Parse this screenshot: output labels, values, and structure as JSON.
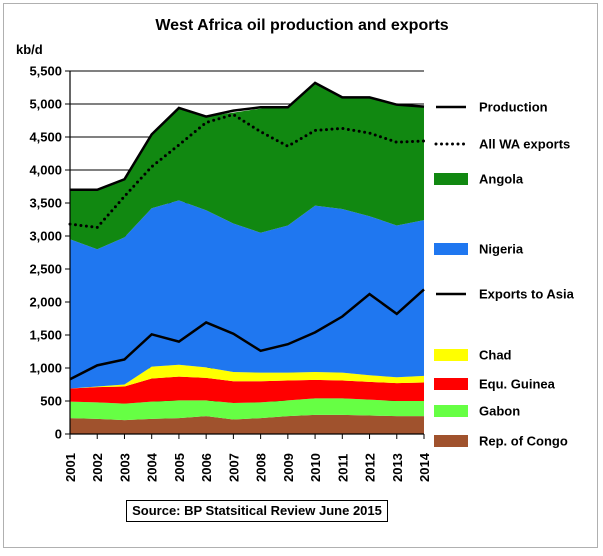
{
  "chart_data": {
    "type": "area",
    "title": "West Africa oil production and exports",
    "ylabel": "kb/d",
    "ylim": [
      0,
      5500
    ],
    "yticks": [
      0,
      500,
      1000,
      1500,
      2000,
      2500,
      3000,
      3500,
      4000,
      4500,
      5000,
      5500
    ],
    "ytick_labels": [
      "0",
      "500",
      "1,000",
      "1,500",
      "2,000",
      "2,500",
      "3,000",
      "3,500",
      "4,000",
      "4,500",
      "5,000",
      "5,500"
    ],
    "categories": [
      "2001",
      "2002",
      "2003",
      "2004",
      "2005",
      "2006",
      "2007",
      "2008",
      "2009",
      "2010",
      "2011",
      "2012",
      "2013",
      "2014"
    ],
    "grid": true,
    "legend_position": "right",
    "stacked_series": [
      {
        "name": "Rep. of Congo",
        "color": "#a0522d",
        "values": [
          240,
          230,
          210,
          230,
          240,
          270,
          220,
          240,
          270,
          290,
          290,
          280,
          270,
          270
        ]
      },
      {
        "name": "Gabon",
        "color": "#66ff44",
        "values": [
          250,
          250,
          250,
          260,
          270,
          240,
          250,
          240,
          240,
          250,
          250,
          240,
          230,
          230
        ]
      },
      {
        "name": "Equ. Guinea",
        "color": "#ff0000",
        "values": [
          200,
          230,
          260,
          350,
          360,
          340,
          330,
          320,
          300,
          280,
          270,
          270,
          270,
          280
        ]
      },
      {
        "name": "Chad",
        "color": "#ffff00",
        "values": [
          0,
          10,
          30,
          180,
          180,
          160,
          140,
          130,
          120,
          120,
          120,
          100,
          90,
          100
        ]
      },
      {
        "name": "Nigeria",
        "color": "#1f77f0",
        "values": [
          2260,
          2080,
          2230,
          2400,
          2490,
          2380,
          2250,
          2120,
          2230,
          2520,
          2480,
          2410,
          2300,
          2360
        ]
      },
      {
        "name": "Angola",
        "color": "#118811",
        "values": [
          750,
          900,
          880,
          1120,
          1400,
          1420,
          1680,
          1880,
          1800,
          1860,
          1700,
          1790,
          1820,
          1720
        ]
      }
    ],
    "line_series": [
      {
        "name": "Production",
        "style": "solid",
        "values": [
          3700,
          3700,
          3860,
          4540,
          4940,
          4810,
          4900,
          4950,
          4950,
          5320,
          5100,
          5100,
          4990,
          4960
        ]
      },
      {
        "name": "All WA exports",
        "style": "dotted",
        "values": [
          3180,
          3130,
          3600,
          4050,
          4380,
          4720,
          4840,
          4580,
          4360,
          4600,
          4630,
          4560,
          4420,
          4440
        ]
      },
      {
        "name": "Exports to Asia",
        "style": "solid",
        "values": [
          830,
          1040,
          1130,
          1510,
          1400,
          1690,
          1520,
          1260,
          1360,
          1540,
          1780,
          2120,
          1820,
          2190
        ]
      }
    ],
    "legend": [
      {
        "label": "Production",
        "kind": "line"
      },
      {
        "label": "All WA exports",
        "kind": "dotted"
      },
      {
        "label": "Angola",
        "kind": "swatch",
        "color": "#118811"
      },
      {
        "label": "Nigeria",
        "kind": "swatch",
        "color": "#1f77f0"
      },
      {
        "label": "Exports to Asia",
        "kind": "line"
      },
      {
        "label": "Chad",
        "kind": "swatch",
        "color": "#ffff00"
      },
      {
        "label": "Equ. Guinea",
        "kind": "swatch",
        "color": "#ff0000"
      },
      {
        "label": "Gabon",
        "kind": "swatch",
        "color": "#66ff44"
      },
      {
        "label": "Rep. of Congo",
        "kind": "swatch",
        "color": "#a0522d"
      }
    ]
  },
  "source": "Source: BP Statsitical Review June 2015"
}
